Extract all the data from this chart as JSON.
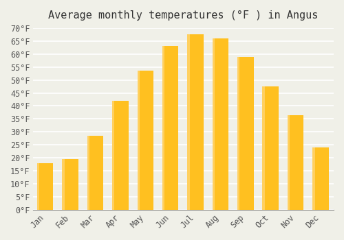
{
  "title": "Average monthly temperatures (°F ) in Angus",
  "months": [
    "Jan",
    "Feb",
    "Mar",
    "Apr",
    "May",
    "Jun",
    "Jul",
    "Aug",
    "Sep",
    "Oct",
    "Nov",
    "Dec"
  ],
  "values": [
    18,
    19.5,
    28.5,
    42,
    53.5,
    63,
    67.5,
    66,
    59,
    47.5,
    36.5,
    24
  ],
  "bar_color_top": "#FFC020",
  "bar_color_bottom": "#FFB000",
  "background_color": "#F0F0E8",
  "grid_color": "#FFFFFF",
  "ylim": [
    0,
    70
  ],
  "ytick_step": 5,
  "title_fontsize": 11,
  "tick_fontsize": 8.5,
  "font_family": "monospace"
}
